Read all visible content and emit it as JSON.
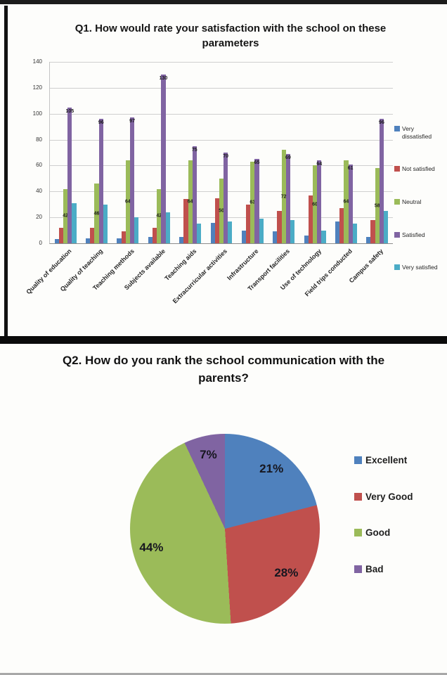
{
  "q1": {
    "title": "Q1. How would rate your satisfaction with the school on these parameters",
    "chart_data": {
      "type": "bar",
      "title": "Q1. How would rate your satisfaction with the school on these parameters",
      "xlabel": "",
      "ylabel": "",
      "ylim": [
        0,
        140
      ],
      "ytick_step": 20,
      "grid": true,
      "legend_position": "right",
      "categories": [
        "Quality of education",
        "Quality of teaching",
        "Teaching methods",
        "Subjects available",
        "Teaching aids",
        "Extracurricular activities",
        "Infrastructure",
        "Transport facilities",
        "Use of technology",
        "Field trips conducted",
        "Campus safety"
      ],
      "series": [
        {
          "name": "Very dissatisfied",
          "color": "#4F81BD",
          "label_position": "none",
          "values": [
            3,
            4,
            4,
            5,
            5,
            16,
            10,
            9,
            6,
            17,
            5
          ]
        },
        {
          "name": "Not satisfied",
          "color": "#C0504D",
          "label_position": "none",
          "values": [
            12,
            12,
            9,
            12,
            34,
            35,
            30,
            25,
            37,
            27,
            18
          ]
        },
        {
          "name": "Neutral",
          "color": "#9BBB59",
          "label_position": "center",
          "values": [
            42,
            46,
            64,
            42,
            64,
            50,
            63,
            72,
            60,
            64,
            58
          ]
        },
        {
          "name": "Satisfied",
          "color": "#8064A2",
          "label_position": "inside-end",
          "values": [
            105,
            96,
            97,
            130,
            75,
            70,
            65,
            69,
            64,
            61,
            96
          ]
        },
        {
          "name": "Very satisfied",
          "color": "#4BACC6",
          "label_position": "none",
          "values": [
            31,
            30,
            20,
            24,
            15,
            17,
            19,
            18,
            10,
            15,
            25
          ]
        }
      ]
    }
  },
  "q2": {
    "title": "Q2. How do you rank the school communication with the parents?",
    "chart_data": {
      "type": "pie",
      "title": "Q2. How do you rank the school communication with the parents?",
      "direction": "clockwise",
      "start_angle_deg": 0,
      "legend_position": "right",
      "slices": [
        {
          "label": "Excellent",
          "value": 21,
          "color": "#4F81BD",
          "data_label": "21%"
        },
        {
          "label": "Very Good",
          "value": 28,
          "color": "#C0504D",
          "data_label": "28%"
        },
        {
          "label": "Good",
          "value": 44,
          "color": "#9BBB59",
          "data_label": "44%"
        },
        {
          "label": "Bad",
          "value": 7,
          "color": "#8064A2",
          "data_label": "7%"
        }
      ]
    }
  }
}
